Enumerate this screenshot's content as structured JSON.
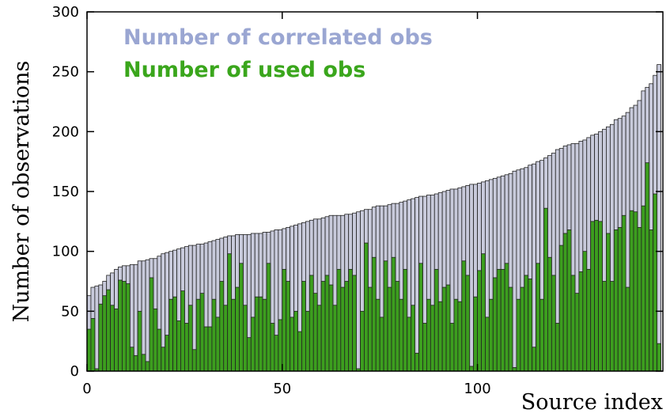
{
  "chart_data": {
    "type": "bar",
    "xlabel": "Source index",
    "ylabel": "Number of observations",
    "x": [
      0,
      1,
      2,
      3,
      4,
      5,
      6,
      7,
      8,
      9,
      10,
      11,
      12,
      13,
      14,
      15,
      16,
      17,
      18,
      19,
      20,
      21,
      22,
      23,
      24,
      25,
      26,
      27,
      28,
      29,
      30,
      31,
      32,
      33,
      34,
      35,
      36,
      37,
      38,
      39,
      40,
      41,
      42,
      43,
      44,
      45,
      46,
      47,
      48,
      49,
      50,
      51,
      52,
      53,
      54,
      55,
      56,
      57,
      58,
      59,
      60,
      61,
      62,
      63,
      64,
      65,
      66,
      67,
      68,
      69,
      70,
      71,
      72,
      73,
      74,
      75,
      76,
      77,
      78,
      79,
      80,
      81,
      82,
      83,
      84,
      85,
      86,
      87,
      88,
      89,
      90,
      91,
      92,
      93,
      94,
      95,
      96,
      97,
      98,
      99,
      100,
      101,
      102,
      103,
      104,
      105,
      106,
      107,
      108,
      109,
      110,
      111,
      112,
      113,
      114,
      115,
      116,
      117,
      118,
      119,
      120,
      121,
      122,
      123,
      124,
      125,
      126,
      127,
      128,
      129,
      130,
      131,
      132,
      133,
      134,
      135,
      136,
      137,
      138,
      139,
      140,
      141,
      142,
      143,
      144,
      145,
      146
    ],
    "series": [
      {
        "name": "Number of correlated obs",
        "color": "#c8cadb",
        "legend_color": "#9aa6d2",
        "values": [
          63,
          70,
          71,
          72,
          75,
          80,
          82,
          85,
          87,
          88,
          88,
          89,
          89,
          92,
          92,
          93,
          94,
          94,
          96,
          98,
          99,
          100,
          101,
          102,
          103,
          104,
          105,
          105,
          106,
          106,
          107,
          108,
          109,
          110,
          111,
          112,
          113,
          113,
          114,
          114,
          114,
          114,
          115,
          115,
          115,
          116,
          116,
          117,
          118,
          118,
          119,
          120,
          121,
          122,
          123,
          124,
          125,
          126,
          127,
          127,
          128,
          129,
          130,
          130,
          130,
          130,
          131,
          131,
          132,
          133,
          134,
          135,
          135,
          137,
          138,
          138,
          138,
          139,
          140,
          140,
          141,
          142,
          143,
          144,
          145,
          146,
          146,
          147,
          147,
          148,
          149,
          150,
          151,
          152,
          152,
          153,
          154,
          155,
          156,
          156,
          157,
          158,
          159,
          160,
          161,
          162,
          163,
          164,
          165,
          167,
          168,
          169,
          170,
          172,
          173,
          175,
          176,
          178,
          180,
          182,
          185,
          186,
          188,
          189,
          190,
          190,
          192,
          193,
          195,
          197,
          198,
          200,
          202,
          204,
          206,
          210,
          211,
          213,
          216,
          220,
          222,
          226,
          234,
          237,
          240,
          247,
          256
        ]
      },
      {
        "name": "Number of used obs",
        "color": "#3c9e1e",
        "legend_color": "#3aa61c",
        "values": [
          35,
          44,
          2,
          56,
          63,
          68,
          55,
          52,
          76,
          75,
          73,
          20,
          13,
          50,
          14,
          8,
          78,
          52,
          35,
          20,
          30,
          60,
          62,
          42,
          67,
          40,
          55,
          18,
          60,
          65,
          37,
          37,
          60,
          45,
          75,
          55,
          98,
          60,
          70,
          90,
          55,
          28,
          45,
          62,
          62,
          60,
          90,
          40,
          30,
          43,
          85,
          75,
          45,
          50,
          33,
          75,
          50,
          80,
          65,
          55,
          75,
          80,
          72,
          55,
          85,
          70,
          75,
          85,
          80,
          2,
          50,
          107,
          70,
          95,
          60,
          45,
          92,
          70,
          95,
          75,
          60,
          85,
          45,
          55,
          15,
          90,
          40,
          60,
          55,
          85,
          58,
          70,
          72,
          40,
          60,
          58,
          92,
          80,
          4,
          62,
          84,
          98,
          45,
          60,
          78,
          85,
          85,
          90,
          70,
          3,
          60,
          70,
          80,
          77,
          20,
          90,
          60,
          136,
          95,
          80,
          40,
          105,
          115,
          118,
          80,
          65,
          83,
          100,
          85,
          125,
          126,
          125,
          75,
          115,
          75,
          118,
          120,
          130,
          70,
          134,
          133,
          120,
          138,
          174,
          118,
          148,
          23
        ]
      }
    ],
    "xlim": [
      0,
      147.5
    ],
    "xticks": [
      0,
      50,
      100
    ],
    "ylim": [
      0,
      300
    ],
    "yticks": [
      0,
      50,
      100,
      150,
      200,
      250,
      300
    ]
  }
}
